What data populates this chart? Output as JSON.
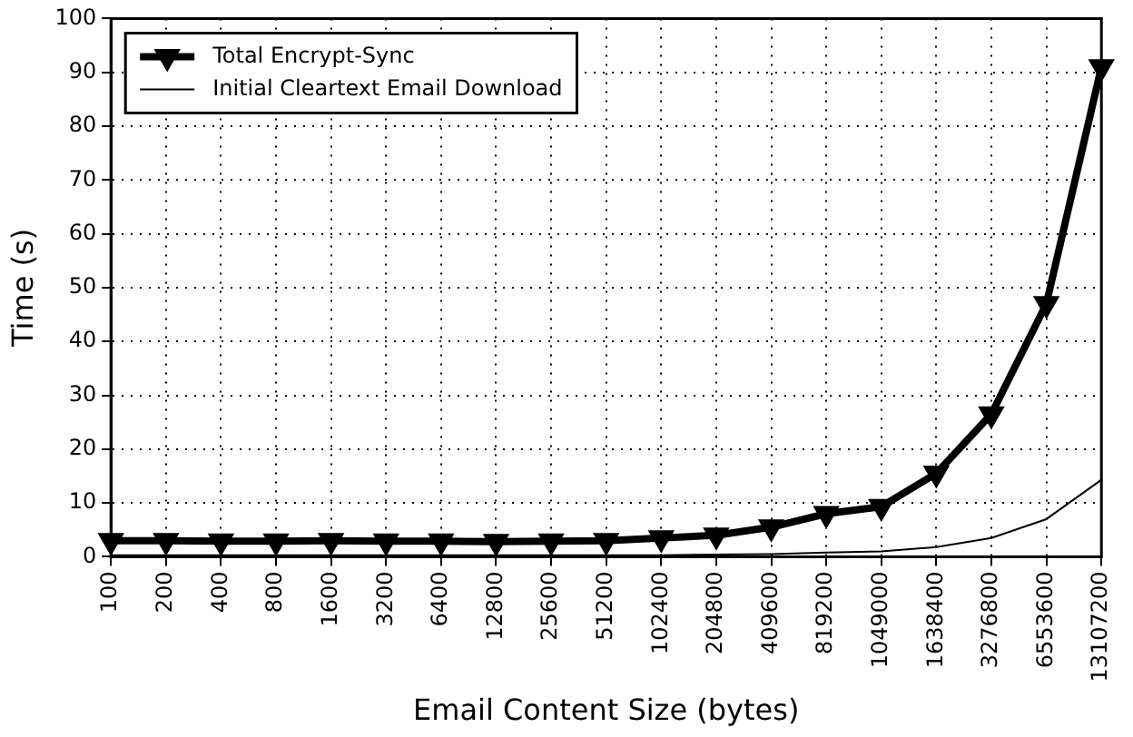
{
  "chart_data": {
    "type": "line",
    "xlabel": "Email Content Size (bytes)",
    "ylabel": "Time (s)",
    "categories": [
      "100",
      "200",
      "400",
      "800",
      "1600",
      "3200",
      "6400",
      "12800",
      "25600",
      "51200",
      "102400",
      "204800",
      "409600",
      "819200",
      "1049000",
      "1638400",
      "3276800",
      "6553600",
      "13107200"
    ],
    "series": [
      {
        "name": "Total Encrypt-Sync",
        "color": "#000000",
        "marker": "triangle",
        "values": [
          3,
          3,
          2.9,
          2.9,
          3,
          2.9,
          2.9,
          2.8,
          2.9,
          3,
          3.5,
          4,
          5.5,
          8,
          9.3,
          15.5,
          26.5,
          47,
          91
        ]
      },
      {
        "name": "Initial Cleartext Email Download",
        "color": "#000000",
        "marker": "none",
        "values": [
          0.3,
          0.3,
          0.3,
          0.3,
          0.3,
          0.3,
          0.3,
          0.3,
          0.3,
          0.3,
          0.3,
          0.4,
          0.5,
          0.8,
          1,
          1.8,
          3.5,
          7,
          14.3
        ]
      }
    ],
    "ylim": [
      0,
      100
    ],
    "yticks": [
      0,
      10,
      20,
      30,
      40,
      50,
      60,
      70,
      80,
      90,
      100
    ],
    "grid": true,
    "legend": "top left",
    "line_style": "solid"
  }
}
